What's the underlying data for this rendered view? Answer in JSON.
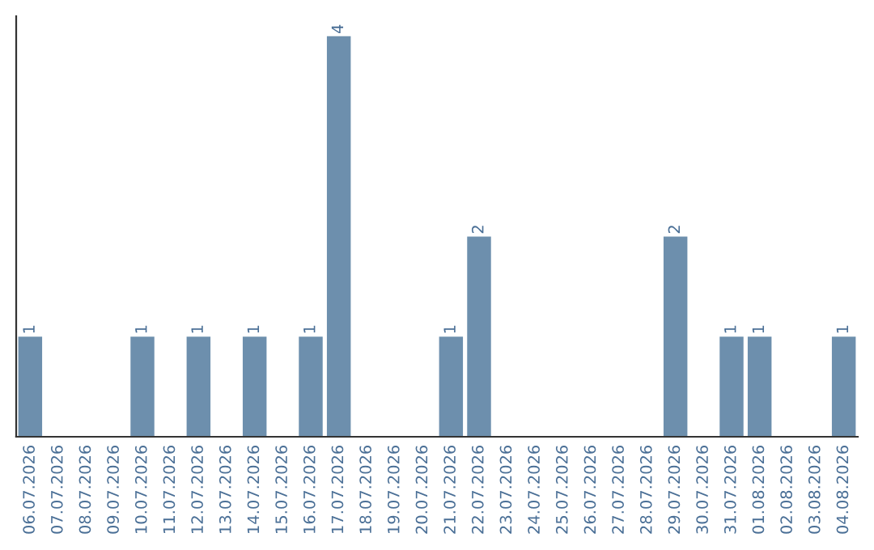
{
  "chart_data": {
    "type": "bar",
    "categories": [
      "06.07.2026",
      "07.07.2026",
      "08.07.2026",
      "09.07.2026",
      "10.07.2026",
      "11.07.2026",
      "12.07.2026",
      "13.07.2026",
      "14.07.2026",
      "15.07.2026",
      "16.07.2026",
      "17.07.2026",
      "18.07.2026",
      "19.07.2026",
      "20.07.2026",
      "21.07.2026",
      "22.07.2026",
      "23.07.2026",
      "24.07.2026",
      "25.07.2026",
      "26.07.2026",
      "27.07.2026",
      "28.07.2026",
      "29.07.2026",
      "30.07.2026",
      "31.07.2026",
      "01.08.2026",
      "02.08.2026",
      "03.08.2026",
      "04.08.2026"
    ],
    "values": [
      1,
      0,
      0,
      0,
      1,
      0,
      1,
      0,
      1,
      0,
      1,
      4,
      0,
      0,
      0,
      1,
      2,
      0,
      0,
      0,
      0,
      0,
      0,
      2,
      0,
      1,
      1,
      0,
      0,
      1
    ],
    "value_labels": [
      "1",
      null,
      null,
      null,
      "1",
      null,
      "1",
      null,
      "1",
      null,
      "1",
      "4",
      null,
      null,
      null,
      "1",
      "2",
      null,
      null,
      null,
      null,
      null,
      null,
      "2",
      null,
      "1",
      "1",
      null,
      null,
      "1"
    ],
    "color": "#6d8fad",
    "tick_labels": "x",
    "grid": false
  }
}
